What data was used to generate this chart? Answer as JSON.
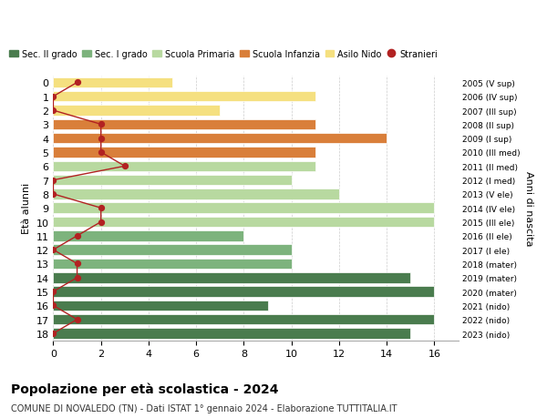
{
  "ages": [
    18,
    17,
    16,
    15,
    14,
    13,
    12,
    11,
    10,
    9,
    8,
    7,
    6,
    5,
    4,
    3,
    2,
    1,
    0
  ],
  "years": [
    "2005 (V sup)",
    "2006 (IV sup)",
    "2007 (III sup)",
    "2008 (II sup)",
    "2009 (I sup)",
    "2010 (III med)",
    "2011 (II med)",
    "2012 (I med)",
    "2013 (V ele)",
    "2014 (IV ele)",
    "2015 (III ele)",
    "2016 (II ele)",
    "2017 (I ele)",
    "2018 (mater)",
    "2019 (mater)",
    "2020 (mater)",
    "2021 (nido)",
    "2022 (nido)",
    "2023 (nido)"
  ],
  "bar_values": [
    15,
    16,
    9,
    16,
    15,
    10,
    10,
    8,
    16,
    16,
    12,
    10,
    11,
    11,
    14,
    11,
    7,
    11,
    5
  ],
  "bar_colors": [
    "#4a7c4e",
    "#4a7c4e",
    "#4a7c4e",
    "#4a7c4e",
    "#4a7c4e",
    "#7db37d",
    "#7db37d",
    "#7db37d",
    "#b8d9a0",
    "#b8d9a0",
    "#b8d9a0",
    "#b8d9a0",
    "#b8d9a0",
    "#d97f3a",
    "#d97f3a",
    "#d97f3a",
    "#f5e080",
    "#f5e080",
    "#f5e080"
  ],
  "stranieri_values": [
    0,
    1,
    0,
    0,
    1,
    1,
    0,
    1,
    2,
    2,
    0,
    0,
    3,
    2,
    2,
    2,
    0,
    0,
    1
  ],
  "stranieri_color": "#b22222",
  "ylabel": "Età alunni",
  "ylabel2": "Anni di nascita",
  "title": "Popolazione per età scolastica - 2024",
  "subtitle": "COMUNE DI NOVALEDO (TN) - Dati ISTAT 1° gennaio 2024 - Elaborazione TUTTITALIA.IT",
  "xlim": [
    0,
    17
  ],
  "xticks": [
    0,
    2,
    4,
    6,
    8,
    10,
    12,
    14,
    16
  ],
  "legend_labels": [
    "Sec. II grado",
    "Sec. I grado",
    "Scuola Primaria",
    "Scuola Infanzia",
    "Asilo Nido",
    "Stranieri"
  ],
  "legend_colors": [
    "#4a7c4e",
    "#7db37d",
    "#b8d9a0",
    "#d97f3a",
    "#f5e080",
    "#b22222"
  ],
  "bg_color": "#ffffff",
  "bar_height": 0.75
}
